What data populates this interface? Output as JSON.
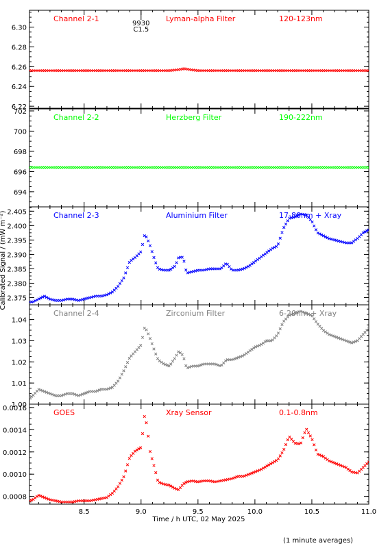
{
  "figure": {
    "xlabel": "Time / h UTC, 02 May 2025",
    "ylabel": "Calibrated Signal / (mW m⁻²)",
    "footnote": "(1 minute averages)",
    "marker": {
      "top_label": "9930",
      "bottom_label": "C1.5",
      "x": 9.0
    }
  },
  "chart_data": [
    {
      "type": "scatter",
      "title": "Channel 2-1",
      "labels": [
        "Channel 2-1",
        "Lyman-alpha Filter",
        "120-123nm"
      ],
      "color": "#ff0000",
      "xlim": [
        8.02,
        11.0
      ],
      "ylim": [
        6.218,
        6.317
      ],
      "yticks": [
        6.22,
        6.24,
        6.26,
        6.28,
        6.3
      ],
      "yticklabels": [
        "6.22",
        "6.24",
        "6.26",
        "6.28",
        "6.30"
      ],
      "series": [
        {
          "x": [
            8.02,
            8.5,
            9.0,
            9.25,
            9.33,
            9.38,
            9.43,
            9.5,
            10.0,
            10.5,
            11.0
          ],
          "y": [
            6.256,
            6.256,
            6.256,
            6.256,
            6.257,
            6.258,
            6.257,
            6.256,
            6.256,
            6.256,
            6.256
          ]
        }
      ]
    },
    {
      "type": "scatter",
      "title": "Channel 2-2",
      "labels": [
        "Channel 2-2",
        "Herzberg Filter",
        "190-222nm"
      ],
      "color": "#00ff00",
      "xlim": [
        8.02,
        11.0
      ],
      "ylim": [
        692.5,
        702.2
      ],
      "yticks": [
        694,
        696,
        698,
        700,
        702
      ],
      "yticklabels": [
        "694",
        "696",
        "698",
        "700",
        "702"
      ],
      "series": [
        {
          "x": [
            8.02,
            8.5,
            9.0,
            9.5,
            10.0,
            10.5,
            11.0
          ],
          "y": [
            696.4,
            696.4,
            696.4,
            696.4,
            696.4,
            696.4,
            696.4
          ]
        }
      ]
    },
    {
      "type": "scatter",
      "title": "Channel 2-3",
      "labels": [
        "Channel 2-3",
        "Aluminium Filter",
        "17-80nm + Xray"
      ],
      "color": "#0000ff",
      "xlim": [
        8.02,
        11.0
      ],
      "ylim": [
        2.3725,
        2.4065
      ],
      "yticks": [
        2.375,
        2.38,
        2.385,
        2.39,
        2.395,
        2.4,
        2.405
      ],
      "yticklabels": [
        "2.375",
        "2.380",
        "2.385",
        "2.390",
        "2.395",
        "2.400",
        "2.405"
      ],
      "series": [
        {
          "x": [
            8.02,
            8.05,
            8.1,
            8.15,
            8.2,
            8.25,
            8.3,
            8.35,
            8.4,
            8.45,
            8.5,
            8.55,
            8.6,
            8.65,
            8.7,
            8.75,
            8.8,
            8.85,
            8.9,
            8.95,
            9.0,
            9.03,
            9.05,
            9.08,
            9.12,
            9.15,
            9.2,
            9.25,
            9.3,
            9.33,
            9.37,
            9.4,
            9.45,
            9.5,
            9.55,
            9.6,
            9.65,
            9.7,
            9.75,
            9.8,
            9.85,
            9.9,
            9.95,
            10.0,
            10.05,
            10.1,
            10.15,
            10.2,
            10.25,
            10.3,
            10.35,
            10.4,
            10.45,
            10.5,
            10.55,
            10.6,
            10.65,
            10.7,
            10.75,
            10.8,
            10.85,
            10.9,
            10.95,
            11.0
          ],
          "y": [
            2.3735,
            2.3735,
            2.3745,
            2.3755,
            2.3745,
            2.374,
            2.374,
            2.3745,
            2.3745,
            2.374,
            2.3745,
            2.375,
            2.3755,
            2.3755,
            2.376,
            2.377,
            2.379,
            2.382,
            2.3875,
            2.389,
            2.391,
            2.3965,
            2.396,
            2.393,
            2.388,
            2.385,
            2.3845,
            2.3845,
            2.386,
            2.389,
            2.389,
            2.3835,
            2.384,
            2.3845,
            2.3845,
            2.385,
            2.385,
            2.385,
            2.387,
            2.3845,
            2.3845,
            2.385,
            2.386,
            2.3875,
            2.389,
            2.3905,
            2.392,
            2.393,
            2.399,
            2.4025,
            2.403,
            2.404,
            2.4038,
            2.4015,
            2.3975,
            2.3965,
            2.3955,
            2.395,
            2.3945,
            2.394,
            2.394,
            2.3955,
            2.3975,
            2.3985
          ]
        }
      ]
    },
    {
      "type": "scatter",
      "title": "Channel 2-4",
      "labels": [
        "Channel 2-4",
        "Zirconium Filter",
        "6-20nm + Xray"
      ],
      "color": "#808080",
      "xlim": [
        8.02,
        11.0
      ],
      "ylim": [
        1.0,
        1.047
      ],
      "yticks": [
        1.0,
        1.01,
        1.02,
        1.03,
        1.04
      ],
      "yticklabels": [
        "1.00",
        "1.01",
        "1.02",
        "1.03",
        "1.04"
      ],
      "series": [
        {
          "x": [
            8.02,
            8.05,
            8.1,
            8.15,
            8.2,
            8.25,
            8.3,
            8.35,
            8.4,
            8.45,
            8.5,
            8.55,
            8.6,
            8.65,
            8.7,
            8.75,
            8.8,
            8.85,
            8.9,
            8.95,
            9.0,
            9.03,
            9.05,
            9.08,
            9.12,
            9.15,
            9.2,
            9.25,
            9.3,
            9.33,
            9.37,
            9.4,
            9.45,
            9.5,
            9.55,
            9.6,
            9.65,
            9.7,
            9.75,
            9.8,
            9.85,
            9.9,
            9.95,
            10.0,
            10.05,
            10.1,
            10.15,
            10.2,
            10.25,
            10.3,
            10.35,
            10.4,
            10.45,
            10.5,
            10.55,
            10.6,
            10.65,
            10.7,
            10.75,
            10.8,
            10.85,
            10.9,
            10.95,
            11.0
          ],
          "y": [
            1.003,
            1.004,
            1.007,
            1.006,
            1.005,
            1.004,
            1.004,
            1.005,
            1.005,
            1.004,
            1.005,
            1.006,
            1.006,
            1.007,
            1.007,
            1.008,
            1.011,
            1.016,
            1.022,
            1.025,
            1.028,
            1.036,
            1.035,
            1.031,
            1.025,
            1.021,
            1.019,
            1.018,
            1.022,
            1.025,
            1.023,
            1.017,
            1.018,
            1.018,
            1.019,
            1.019,
            1.019,
            1.018,
            1.021,
            1.021,
            1.022,
            1.023,
            1.025,
            1.027,
            1.028,
            1.03,
            1.03,
            1.033,
            1.039,
            1.042,
            1.043,
            1.044,
            1.043,
            1.042,
            1.038,
            1.035,
            1.033,
            1.032,
            1.031,
            1.03,
            1.029,
            1.03,
            1.033,
            1.036
          ]
        }
      ]
    },
    {
      "type": "scatter",
      "title": "GOES",
      "labels": [
        "GOES",
        "Xray Sensor",
        "0.1-0.8nm"
      ],
      "color": "#ff0000",
      "xlim": [
        8.02,
        11.0
      ],
      "ylim": [
        0.00073,
        0.00163
      ],
      "yticks": [
        0.0008,
        0.001,
        0.0012,
        0.0014,
        0.0016
      ],
      "yticklabels": [
        "0.0008",
        "0.0010",
        "0.0012",
        "0.0014",
        "0.0016"
      ],
      "series": [
        {
          "x": [
            8.02,
            8.05,
            8.1,
            8.15,
            8.2,
            8.25,
            8.3,
            8.35,
            8.4,
            8.45,
            8.5,
            8.55,
            8.6,
            8.65,
            8.7,
            8.75,
            8.8,
            8.85,
            8.9,
            8.95,
            9.0,
            9.03,
            9.05,
            9.08,
            9.12,
            9.15,
            9.2,
            9.25,
            9.3,
            9.33,
            9.37,
            9.4,
            9.45,
            9.5,
            9.55,
            9.6,
            9.65,
            9.7,
            9.75,
            9.8,
            9.85,
            9.9,
            9.95,
            10.0,
            10.05,
            10.1,
            10.15,
            10.2,
            10.25,
            10.3,
            10.35,
            10.4,
            10.45,
            10.5,
            10.55,
            10.6,
            10.65,
            10.7,
            10.75,
            10.8,
            10.85,
            10.9,
            10.95,
            11.0
          ],
          "y": [
            0.00076,
            0.00077,
            0.00081,
            0.00079,
            0.00077,
            0.00076,
            0.00075,
            0.00075,
            0.00075,
            0.00076,
            0.00076,
            0.00076,
            0.00077,
            0.00078,
            0.00079,
            0.00083,
            0.00089,
            0.00098,
            0.00115,
            0.00121,
            0.00124,
            0.00152,
            0.00145,
            0.0012,
            0.00105,
            0.00093,
            0.00091,
            0.0009,
            0.00087,
            0.00086,
            0.00091,
            0.00093,
            0.00094,
            0.00093,
            0.00094,
            0.00094,
            0.00093,
            0.00094,
            0.00095,
            0.00096,
            0.00098,
            0.00098,
            0.001,
            0.00102,
            0.00104,
            0.00107,
            0.0011,
            0.00113,
            0.00121,
            0.00134,
            0.00128,
            0.00127,
            0.00141,
            0.00132,
            0.00118,
            0.00116,
            0.00112,
            0.0011,
            0.00108,
            0.00106,
            0.00102,
            0.00101,
            0.00106,
            0.00111
          ]
        }
      ]
    }
  ],
  "x_axis": {
    "ticks": [
      8.5,
      9.0,
      9.5,
      10.0,
      10.5,
      11.0
    ],
    "ticklabels": [
      "8.5",
      "9.0",
      "9.5",
      "10.0",
      "10.5",
      "11.0"
    ]
  }
}
